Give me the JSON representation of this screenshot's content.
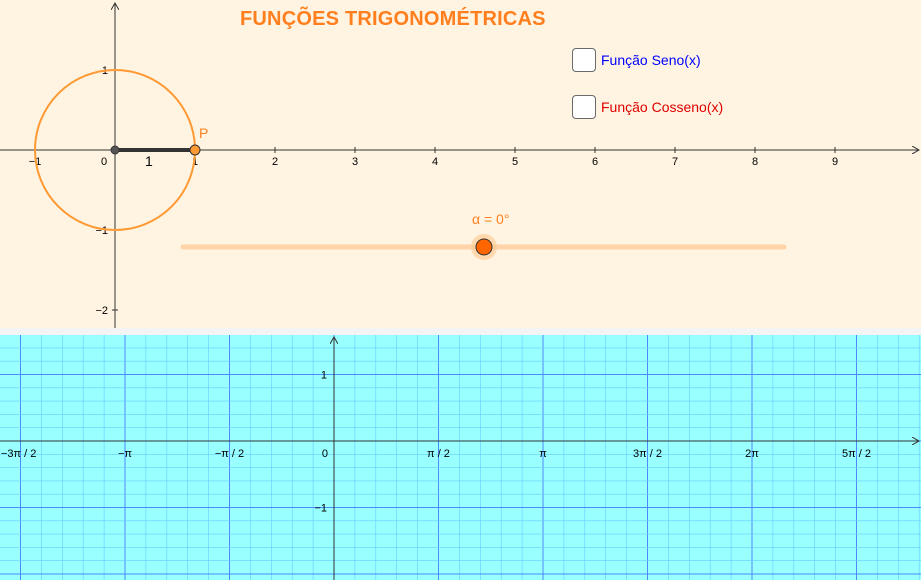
{
  "title": "FUNÇÕES TRIGONOMÉTRICAS",
  "checkboxes": {
    "sine": {
      "label": "Função Seno(x)",
      "color": "#0000ff",
      "checked": false
    },
    "cosine": {
      "label": "Função Cosseno(x)",
      "color": "#e00000",
      "checked": false
    }
  },
  "slider": {
    "label": "α = 0°",
    "value_degrees": 0,
    "color": "#ff7f1f"
  },
  "point": {
    "label": "P"
  },
  "segment_label": "1",
  "unit_circle": {
    "radius": 1,
    "color": "#ff9933"
  },
  "upper_axes": {
    "x_ticks": [
      "−1",
      "0",
      "1",
      "2",
      "3",
      "4",
      "5",
      "6",
      "7",
      "8",
      "9"
    ],
    "y_ticks": [
      "1",
      "−1",
      "−2"
    ]
  },
  "lower_axes": {
    "x_ticks": [
      "−3π / 2",
      "−π",
      "−π / 2",
      "0",
      "π / 2",
      "π",
      "3π / 2",
      "2π",
      "5π / 2"
    ],
    "y_ticks": [
      "1",
      "−1"
    ],
    "grid_major_color": "#4d88ff",
    "grid_minor_color": "#66ccff"
  }
}
